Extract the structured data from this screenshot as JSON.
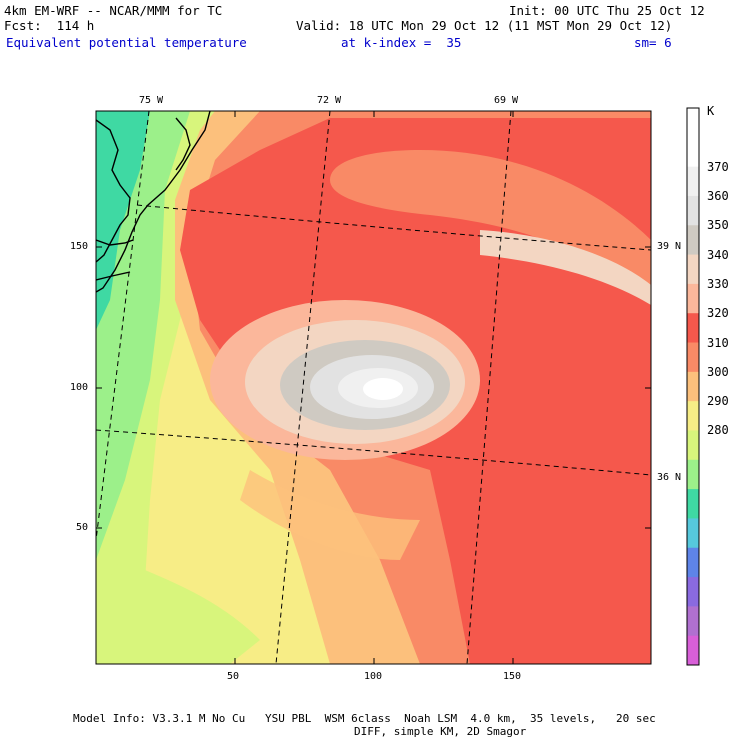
{
  "header": {
    "model_line": "4km EM-WRF -- NCAR/MMM for TC",
    "forecast_line": "Fcst:  114 h",
    "init_line": "Init: 00 UTC Thu 25 Oct 12",
    "valid_line": "Valid: 18 UTC Mon 29 Oct 12 (11 MST Mon 29 Oct 12)",
    "field_line": "Equivalent potential temperature",
    "kindex_line": "at k-index =  35",
    "smooth_line": "sm= 6"
  },
  "map": {
    "x_ticks": [
      "50",
      "100",
      "150"
    ],
    "y_ticks": [
      "150",
      "100",
      "50"
    ],
    "longitudes": [
      "75 W",
      "72 W",
      "69 W"
    ],
    "latitudes": [
      "39 N",
      "36 N"
    ]
  },
  "colorbar": {
    "unit": "K",
    "labels": [
      "370",
      "360",
      "350",
      "340",
      "330",
      "320",
      "310",
      "300",
      "290",
      "280"
    ],
    "colors": [
      "#ffffff",
      "#ffffff",
      "#f0f0f0",
      "#e2e2e2",
      "#cfcac2",
      "#f3d6c2",
      "#fbb79b",
      "#f5584c",
      "#f98a66",
      "#fcc07c",
      "#f7ed86",
      "#d8f57c",
      "#9cf08a",
      "#3fd9a3",
      "#56c8dc",
      "#5e84e8",
      "#8a6ae0",
      "#b070d0",
      "#d85fd8"
    ]
  },
  "footer": {
    "line1": "Model Info: V3.3.1 M No Cu   YSU PBL  WSM 6class  Noah LSM  4.0 km,  35 levels,   20 sec",
    "line2": "DIFF, simple KM, 2D Smagor"
  }
}
